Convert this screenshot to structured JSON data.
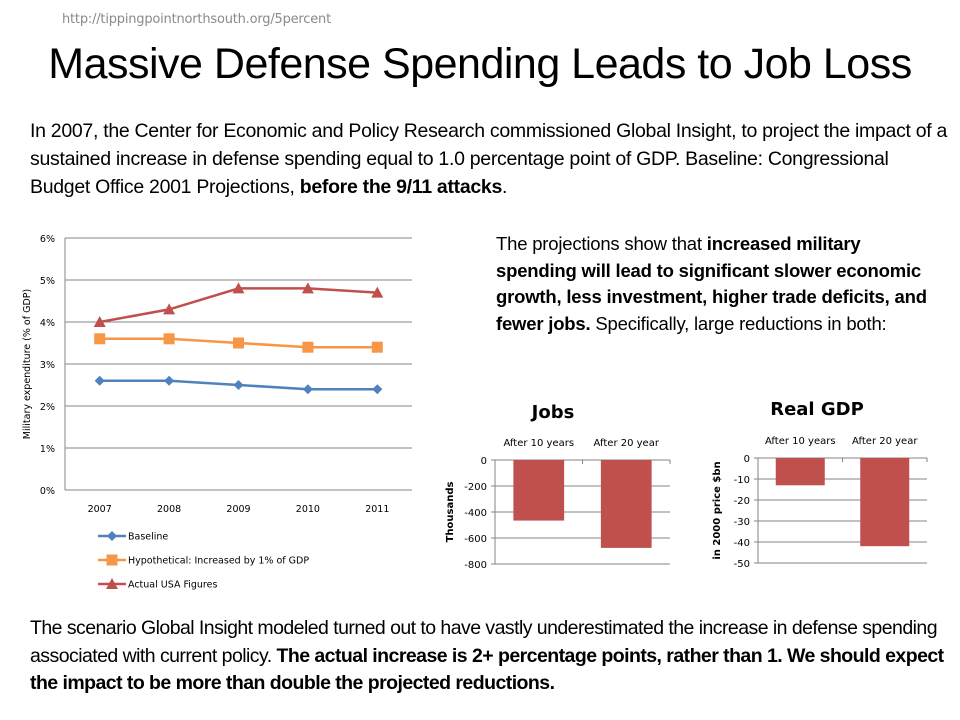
{
  "page": {
    "url": "http://tippingpointnorthsouth.org/5percent",
    "title": "Massive Defense Spending Leads to Job Loss",
    "intro": {
      "line1": "In 2007, the Center for Economic and Policy Research commissioned Global Insight, to project the impact of a sustained increase in defense spending equal to 1.0 percentage point of GDP. Baseline: Congressional Budget Office 2001 Projections, ",
      "bold": "before the 9/11 attacks",
      "end": "."
    },
    "projections": {
      "lead": "The projections show that ",
      "bold": "increased military spending will lead to significant slower economic growth, less investment, higher trade deficits, and fewer jobs.",
      "tail": " Specifically, large reductions in both:"
    },
    "outro": {
      "plain": "The scenario Global Insight modeled turned out to have vastly underestimated the increase in defense spending associated with current policy. ",
      "bold": "The actual increase is 2+ percentage points, rather than 1. We should expect the impact to be more than double the projected reductions."
    }
  },
  "chart_data": [
    {
      "type": "line",
      "title": "",
      "xlabel": "",
      "ylabel": "Military expenditure (% of GDP)",
      "categories": [
        "2007",
        "2008",
        "2009",
        "2010",
        "2011"
      ],
      "ylim": [
        0,
        6
      ],
      "yticks": [
        "0%",
        "1%",
        "2%",
        "3%",
        "4%",
        "5%",
        "6%"
      ],
      "grid": true,
      "legend": "bottom",
      "series": [
        {
          "name": "Baseline",
          "color": "#4f81bd",
          "marker": "diamond",
          "values": [
            2.6,
            2.6,
            2.5,
            2.4,
            2.4
          ]
        },
        {
          "name": "Hypothetical: Increased by 1% of GDP",
          "color": "#f79646",
          "marker": "square",
          "values": [
            3.6,
            3.6,
            3.5,
            3.4,
            3.4
          ]
        },
        {
          "name": "Actual USA Figures",
          "color": "#c0504d",
          "marker": "triangle",
          "values": [
            4.0,
            4.3,
            4.8,
            4.8,
            4.7
          ]
        }
      ]
    },
    {
      "type": "bar",
      "title": "Jobs",
      "ylabel": "Thousands",
      "categories": [
        "After 10 years",
        "After 20 year"
      ],
      "values": [
        -466,
        -676
      ],
      "ylim": [
        -800,
        0
      ],
      "yticks": [
        "0",
        "-200",
        "-400",
        "-600",
        "-800"
      ],
      "color": "#c0504d",
      "grid": true
    },
    {
      "type": "bar",
      "title": "Real GDP",
      "ylabel": "in 2000 price $bn",
      "categories": [
        "After 10 years",
        "After 20 year"
      ],
      "values": [
        -13,
        -42
      ],
      "ylim": [
        -50,
        0
      ],
      "yticks": [
        "0",
        "-10",
        "-20",
        "-30",
        "-40",
        "-50"
      ],
      "color": "#c0504d",
      "grid": true
    }
  ]
}
